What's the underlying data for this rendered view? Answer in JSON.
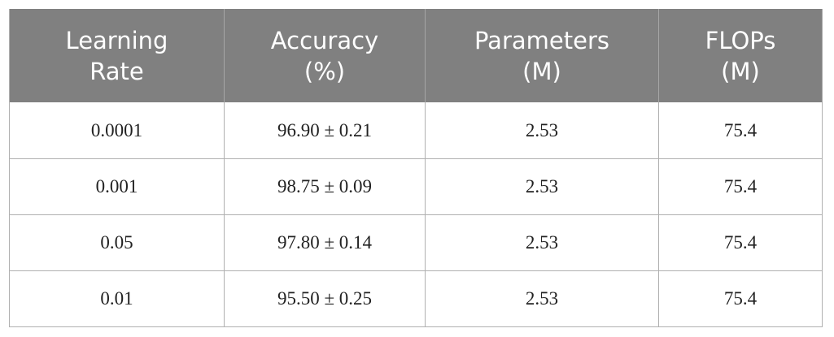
{
  "table": {
    "header": [
      [
        "Learning",
        "Rate"
      ],
      [
        "Accuracy",
        "(%)"
      ],
      [
        "Parameters",
        "(M)"
      ],
      [
        "FLOPs",
        "(M)"
      ]
    ],
    "rows": [
      [
        "0.0001",
        "96.90 ± 0.21",
        "2.53",
        "75.4"
      ],
      [
        "0.001",
        "98.75 ± 0.09",
        "2.53",
        "75.4"
      ],
      [
        "0.05",
        "97.80 ± 0.14",
        "2.53",
        "75.4"
      ],
      [
        "0.01",
        "95.50 ± 0.25",
        "2.53",
        "75.4"
      ]
    ]
  }
}
